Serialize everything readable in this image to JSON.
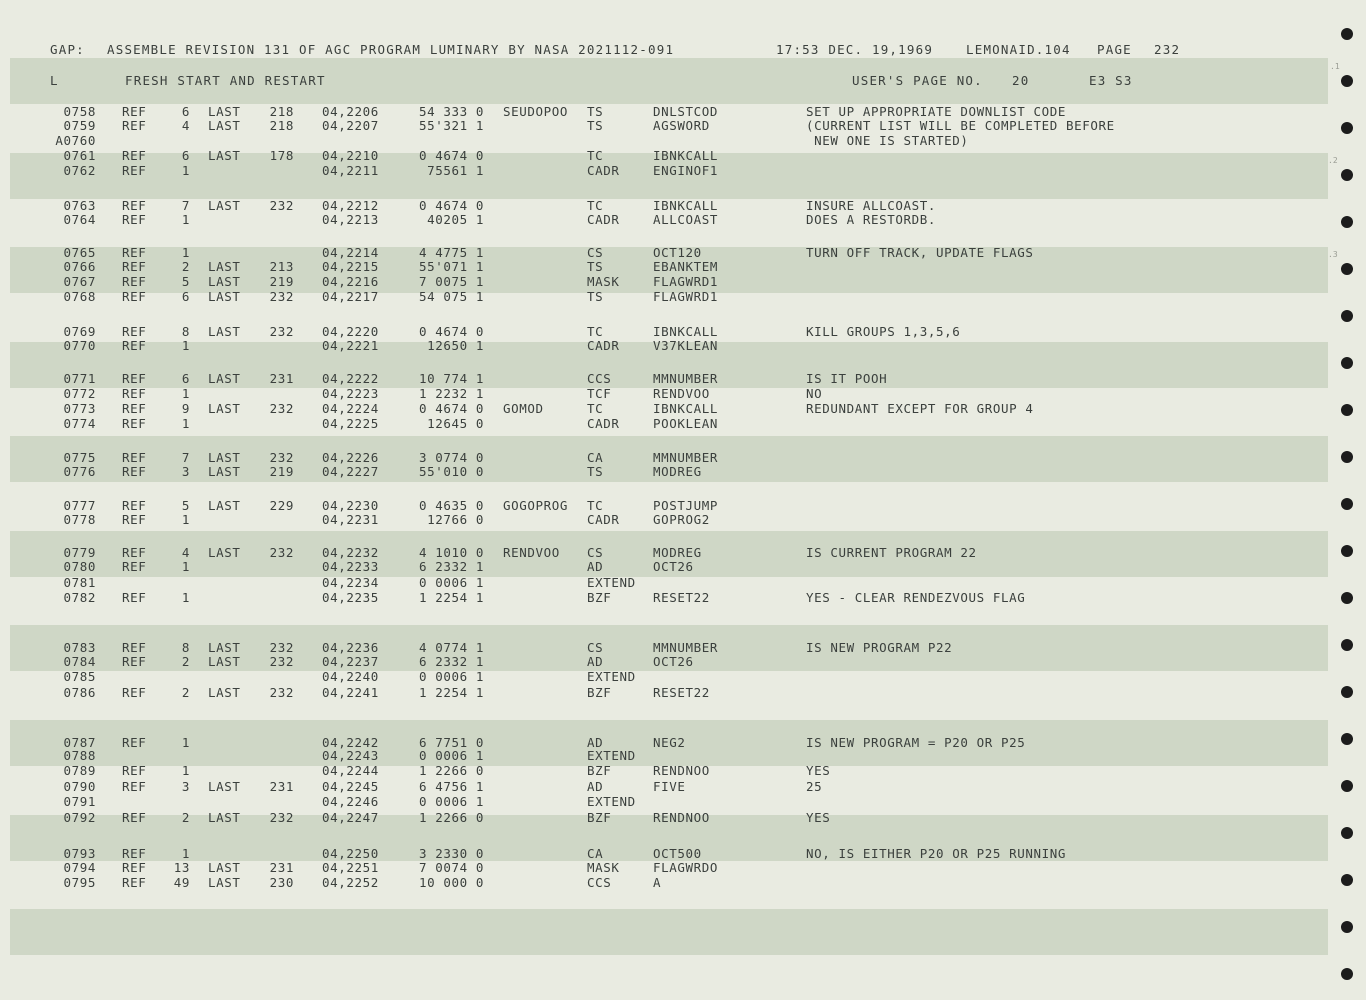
{
  "header": {
    "gap": "GAP:",
    "assembly": "ASSEMBLE REVISION 131 OF AGC PROGRAM LUMINARY BY NASA 2021112-091",
    "timestamp": "17:53 DEC. 19,1969",
    "lemonaid": "LEMONAID.104",
    "page_label": "PAGE",
    "page_number": "232"
  },
  "subheader": {
    "l": "L",
    "section": "FRESH START AND RESTART",
    "users_page": "USER'S PAGE NO.",
    "users_page_number": "20",
    "codes": "E3 S3"
  },
  "margin_marks": [
    ".1",
    ".2",
    ".3"
  ],
  "rows": [
    {
      "num": "0758",
      "ref": "REF",
      "cnt": "6",
      "last": "LAST",
      "lnum": "218",
      "addr": "04,2206",
      "code": "54 333 0",
      "label": "SEUDOPOO",
      "op": "TS",
      "arg": "DNLSTCOD",
      "com": "SET UP APPROPRIATE DOWNLIST CODE"
    },
    {
      "num": "0759",
      "ref": "REF",
      "cnt": "4",
      "last": "LAST",
      "lnum": "218",
      "addr": "04,2207",
      "code": "55'321 1",
      "label": "",
      "op": "TS",
      "arg": "AGSWORD",
      "com": "(CURRENT LIST WILL BE COMPLETED BEFORE"
    },
    {
      "num": "A0760",
      "ref": "",
      "cnt": "",
      "last": "",
      "lnum": "",
      "addr": "",
      "code": "",
      "label": "",
      "op": "",
      "arg": "",
      "com": " NEW ONE IS STARTED)"
    },
    {
      "num": "0761",
      "ref": "REF",
      "cnt": "6",
      "last": "LAST",
      "lnum": "178",
      "addr": "04,2210",
      "code": "0 4674 0",
      "label": "",
      "op": "TC",
      "arg": "IBNKCALL",
      "com": ""
    },
    {
      "num": "0762",
      "ref": "REF",
      "cnt": "1",
      "last": "",
      "lnum": "",
      "addr": "04,2211",
      "code": "75561 1",
      "label": "",
      "op": "CADR",
      "arg": "ENGINOF1",
      "com": ""
    },
    {
      "num": "0763",
      "ref": "REF",
      "cnt": "7",
      "last": "LAST",
      "lnum": "232",
      "addr": "04,2212",
      "code": "0 4674 0",
      "label": "",
      "op": "TC",
      "arg": "IBNKCALL",
      "com": "INSURE ALLCOAST."
    },
    {
      "num": "0764",
      "ref": "REF",
      "cnt": "1",
      "last": "",
      "lnum": "",
      "addr": "04,2213",
      "code": "40205 1",
      "label": "",
      "op": "CADR",
      "arg": "ALLCOAST",
      "com": "DOES A RESTORDB."
    },
    {
      "num": "0765",
      "ref": "REF",
      "cnt": "1",
      "last": "",
      "lnum": "",
      "addr": "04,2214",
      "code": "4 4775 1",
      "label": "",
      "op": "CS",
      "arg": "OCT120",
      "com": "TURN OFF TRACK, UPDATE FLAGS"
    },
    {
      "num": "0766",
      "ref": "REF",
      "cnt": "2",
      "last": "LAST",
      "lnum": "213",
      "addr": "04,2215",
      "code": "55'071 1",
      "label": "",
      "op": "TS",
      "arg": "EBANKTEM",
      "com": ""
    },
    {
      "num": "0767",
      "ref": "REF",
      "cnt": "5",
      "last": "LAST",
      "lnum": "219",
      "addr": "04,2216",
      "code": "7 0075 1",
      "label": "",
      "op": "MASK",
      "arg": "FLAGWRD1",
      "com": ""
    },
    {
      "num": "0768",
      "ref": "REF",
      "cnt": "6",
      "last": "LAST",
      "lnum": "232",
      "addr": "04,2217",
      "code": "54 075 1",
      "label": "",
      "op": "TS",
      "arg": "FLAGWRD1",
      "com": ""
    },
    {
      "num": "0769",
      "ref": "REF",
      "cnt": "8",
      "last": "LAST",
      "lnum": "232",
      "addr": "04,2220",
      "code": "0 4674 0",
      "label": "",
      "op": "TC",
      "arg": "IBNKCALL",
      "com": "KILL GROUPS 1,3,5,6"
    },
    {
      "num": "0770",
      "ref": "REF",
      "cnt": "1",
      "last": "",
      "lnum": "",
      "addr": "04,2221",
      "code": "12650 1",
      "label": "",
      "op": "CADR",
      "arg": "V37KLEAN",
      "com": ""
    },
    {
      "num": "0771",
      "ref": "REF",
      "cnt": "6",
      "last": "LAST",
      "lnum": "231",
      "addr": "04,2222",
      "code": "10 774 1",
      "label": "",
      "op": "CCS",
      "arg": "MMNUMBER",
      "com": "IS IT POOH"
    },
    {
      "num": "0772",
      "ref": "REF",
      "cnt": "1",
      "last": "",
      "lnum": "",
      "addr": "04,2223",
      "code": "1 2232 1",
      "label": "",
      "op": "TCF",
      "arg": "RENDVOO",
      "com": "NO"
    },
    {
      "num": "0773",
      "ref": "REF",
      "cnt": "9",
      "last": "LAST",
      "lnum": "232",
      "addr": "04,2224",
      "code": "0 4674 0",
      "label": "GOMOD",
      "op": "TC",
      "arg": "IBNKCALL",
      "com": "REDUNDANT EXCEPT FOR GROUP 4"
    },
    {
      "num": "0774",
      "ref": "REF",
      "cnt": "1",
      "last": "",
      "lnum": "",
      "addr": "04,2225",
      "code": "12645 0",
      "label": "",
      "op": "CADR",
      "arg": "POOKLEAN",
      "com": ""
    },
    {
      "num": "0775",
      "ref": "REF",
      "cnt": "7",
      "last": "LAST",
      "lnum": "232",
      "addr": "04,2226",
      "code": "3 0774 0",
      "label": "",
      "op": "CA",
      "arg": "MMNUMBER",
      "com": ""
    },
    {
      "num": "0776",
      "ref": "REF",
      "cnt": "3",
      "last": "LAST",
      "lnum": "219",
      "addr": "04,2227",
      "code": "55'010 0",
      "label": "",
      "op": "TS",
      "arg": "MODREG",
      "com": ""
    },
    {
      "num": "0777",
      "ref": "REF",
      "cnt": "5",
      "last": "LAST",
      "lnum": "229",
      "addr": "04,2230",
      "code": "0 4635 0",
      "label": "GOGOPROG",
      "op": "TC",
      "arg": "POSTJUMP",
      "com": ""
    },
    {
      "num": "0778",
      "ref": "REF",
      "cnt": "1",
      "last": "",
      "lnum": "",
      "addr": "04,2231",
      "code": "12766 0",
      "label": "",
      "op": "CADR",
      "arg": "GOPROG2",
      "com": ""
    },
    {
      "num": "0779",
      "ref": "REF",
      "cnt": "4",
      "last": "LAST",
      "lnum": "232",
      "addr": "04,2232",
      "code": "4 1010 0",
      "label": "RENDVOO",
      "op": "CS",
      "arg": "MODREG",
      "com": "IS CURRENT PROGRAM 22"
    },
    {
      "num": "0780",
      "ref": "REF",
      "cnt": "1",
      "last": "",
      "lnum": "",
      "addr": "04,2233",
      "code": "6 2332 1",
      "label": "",
      "op": "AD",
      "arg": "OCT26",
      "com": ""
    },
    {
      "num": "0781",
      "ref": "",
      "cnt": "",
      "last": "",
      "lnum": "",
      "addr": "04,2234",
      "code": "0 0006 1",
      "label": "",
      "op": "EXTEND",
      "arg": "",
      "com": ""
    },
    {
      "num": "0782",
      "ref": "REF",
      "cnt": "1",
      "last": "",
      "lnum": "",
      "addr": "04,2235",
      "code": "1 2254 1",
      "label": "",
      "op": "BZF",
      "arg": "RESET22",
      "com": "YES - CLEAR RENDEZVOUS FLAG"
    },
    {
      "num": "0783",
      "ref": "REF",
      "cnt": "8",
      "last": "LAST",
      "lnum": "232",
      "addr": "04,2236",
      "code": "4 0774 1",
      "label": "",
      "op": "CS",
      "arg": "MMNUMBER",
      "com": "IS NEW PROGRAM P22"
    },
    {
      "num": "0784",
      "ref": "REF",
      "cnt": "2",
      "last": "LAST",
      "lnum": "232",
      "addr": "04,2237",
      "code": "6 2332 1",
      "label": "",
      "op": "AD",
      "arg": "OCT26",
      "com": ""
    },
    {
      "num": "0785",
      "ref": "",
      "cnt": "",
      "last": "",
      "lnum": "",
      "addr": "04,2240",
      "code": "0 0006 1",
      "label": "",
      "op": "EXTEND",
      "arg": "",
      "com": ""
    },
    {
      "num": "0786",
      "ref": "REF",
      "cnt": "2",
      "last": "LAST",
      "lnum": "232",
      "addr": "04,2241",
      "code": "1 2254 1",
      "label": "",
      "op": "BZF",
      "arg": "RESET22",
      "com": ""
    },
    {
      "num": "0787",
      "ref": "REF",
      "cnt": "1",
      "last": "",
      "lnum": "",
      "addr": "04,2242",
      "code": "6 7751 0",
      "label": "",
      "op": "AD",
      "arg": "NEG2",
      "com": "IS NEW PROGRAM = P20 OR P25"
    },
    {
      "num": "0788",
      "ref": "",
      "cnt": "",
      "last": "",
      "lnum": "",
      "addr": "04,2243",
      "code": "0 0006 1",
      "label": "",
      "op": "EXTEND",
      "arg": "",
      "com": ""
    },
    {
      "num": "0789",
      "ref": "REF",
      "cnt": "1",
      "last": "",
      "lnum": "",
      "addr": "04,2244",
      "code": "1 2266 0",
      "label": "",
      "op": "BZF",
      "arg": "RENDNOO",
      "com": "YES"
    },
    {
      "num": "0790",
      "ref": "REF",
      "cnt": "3",
      "last": "LAST",
      "lnum": "231",
      "addr": "04,2245",
      "code": "6 4756 1",
      "label": "",
      "op": "AD",
      "arg": "FIVE",
      "com": "25"
    },
    {
      "num": "0791",
      "ref": "",
      "cnt": "",
      "last": "",
      "lnum": "",
      "addr": "04,2246",
      "code": "0 0006 1",
      "label": "",
      "op": "EXTEND",
      "arg": "",
      "com": ""
    },
    {
      "num": "0792",
      "ref": "REF",
      "cnt": "2",
      "last": "LAST",
      "lnum": "232",
      "addr": "04,2247",
      "code": "1 2266 0",
      "label": "",
      "op": "BZF",
      "arg": "RENDNOO",
      "com": "YES"
    },
    {
      "num": "0793",
      "ref": "REF",
      "cnt": "1",
      "last": "",
      "lnum": "",
      "addr": "04,2250",
      "code": "3 2330 0",
      "label": "",
      "op": "CA",
      "arg": "OCT500",
      "com": "NO, IS EITHER P20 OR P25 RUNNING"
    },
    {
      "num": "0794",
      "ref": "REF",
      "cnt": "13",
      "last": "LAST",
      "lnum": "231",
      "addr": "04,2251",
      "code": "7 0074 0",
      "label": "",
      "op": "MASK",
      "arg": "FLAGWRDO",
      "com": ""
    },
    {
      "num": "0795",
      "ref": "REF",
      "cnt": "49",
      "last": "LAST",
      "lnum": "230",
      "addr": "04,2252",
      "code": "10 000 0",
      "label": "",
      "op": "CCS",
      "arg": "A",
      "com": ""
    }
  ]
}
